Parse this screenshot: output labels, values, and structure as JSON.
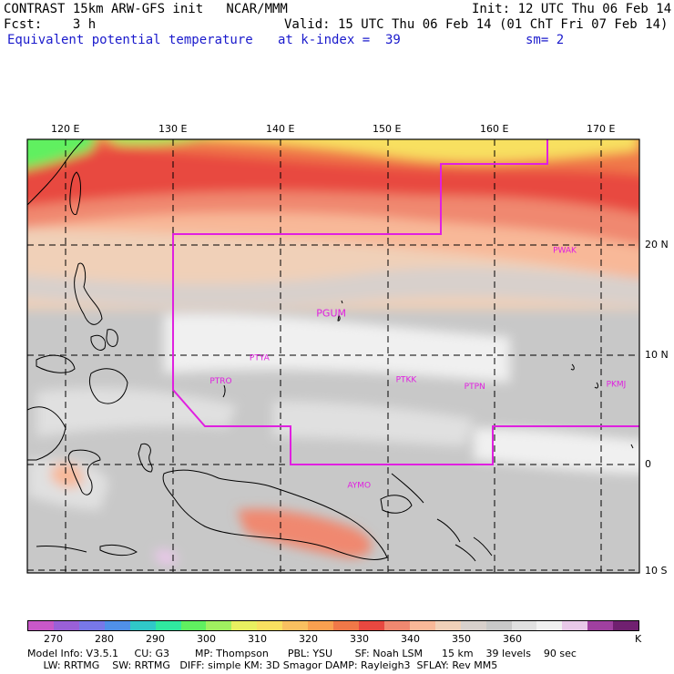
{
  "header": {
    "model_line": "CONTRAST 15km ARW-GFS init   NCAR/MMM",
    "fcst_line": "Fcst:    3 h",
    "init_line": "Init: 12 UTC Thu 06 Feb 14",
    "valid_line": "Valid: 15 UTC Thu 06 Feb 14 (01 ChT Fri 07 Feb 14)",
    "field_label": "Equivalent potential temperature",
    "index_label": "at k-index =  39",
    "smooth_label": "sm= 2"
  },
  "map": {
    "lon_labels": [
      "120 E",
      "130 E",
      "140 E",
      "150 E",
      "160 E",
      "170 E"
    ],
    "lat_labels": [
      "20 N",
      "10 N",
      "0",
      "10 S"
    ],
    "stations": [
      {
        "id": "PWAK",
        "lon": 166.6,
        "lat": 19.3
      },
      {
        "id": "PGUM",
        "lon": 144.8,
        "lat": 13.5
      },
      {
        "id": "PTYA",
        "lon": 138.1,
        "lat": 9.5
      },
      {
        "id": "PTRO",
        "lon": 134.5,
        "lat": 7.4
      },
      {
        "id": "PTKK",
        "lon": 151.8,
        "lat": 7.5
      },
      {
        "id": "PTPN",
        "lon": 158.2,
        "lat": 6.9
      },
      {
        "id": "PKMJ",
        "lon": 171.4,
        "lat": 7.1
      },
      {
        "id": "AYMO",
        "lon": 147.4,
        "lat": -2.1
      }
    ],
    "domain_color": "#e020e0"
  },
  "colorbar": {
    "unit": "K",
    "tick_labels": [
      "270",
      "280",
      "290",
      "300",
      "310",
      "320",
      "330",
      "340",
      "350",
      "360"
    ],
    "colors": [
      "#c858c8",
      "#9a60d8",
      "#7878e8",
      "#5090e8",
      "#30c8c8",
      "#30e8a0",
      "#60f060",
      "#a0f060",
      "#e8f060",
      "#f8e060",
      "#f8c060",
      "#f8a050",
      "#f07848",
      "#e84840",
      "#f08870",
      "#f8b898",
      "#f0d0b8",
      "#d8d0cc",
      "#c8c8c8",
      "#e0e0e0",
      "#f0f0f0",
      "#e8c8e8",
      "#a040a0",
      "#702070"
    ]
  },
  "model_info": {
    "line1": "Model Info: V3.5.1     CU: G3        MP: Thompson      PBL: YSU       SF: Noah LSM      15 km    39 levels    90 sec",
    "line2": "     LW: RRTMG    SW: RRTMG   DIFF: simple KM: 3D Smagor DAMP: Rayleigh3  SFLAY: Rev MM5"
  }
}
